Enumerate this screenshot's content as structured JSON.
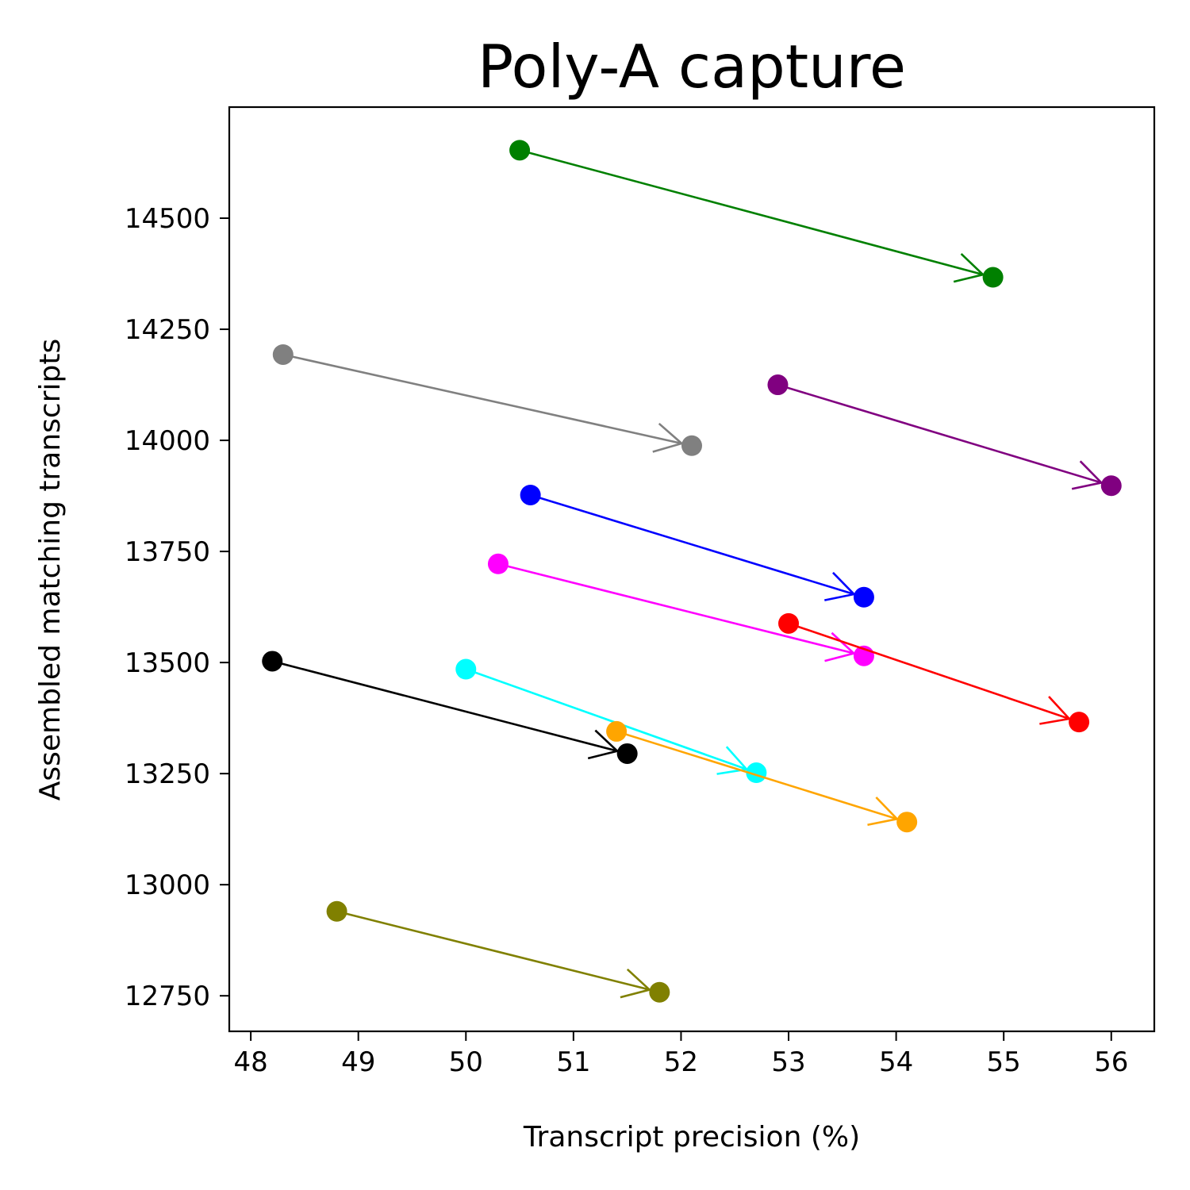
{
  "chart_data": {
    "type": "scatter",
    "title": "Poly-A capture",
    "xlabel": "Transcript precision (%)",
    "ylabel": "Assembled matching transcripts",
    "xlim": [
      47.8,
      56.4
    ],
    "ylim": [
      12670,
      14750
    ],
    "xticks": [
      "48",
      "49",
      "50",
      "51",
      "52",
      "53",
      "54",
      "55",
      "56"
    ],
    "yticks": [
      "12750",
      "13000",
      "13250",
      "13500",
      "13750",
      "14000",
      "14250",
      "14500"
    ],
    "grid": false,
    "series": [
      {
        "color": "#008000",
        "from": {
          "x": 50.5,
          "y": 14653
        },
        "to": {
          "x": 54.9,
          "y": 14367
        }
      },
      {
        "color": "#808080",
        "from": {
          "x": 48.3,
          "y": 14193
        },
        "to": {
          "x": 52.1,
          "y": 13988
        }
      },
      {
        "color": "#800080",
        "from": {
          "x": 52.9,
          "y": 14125
        },
        "to": {
          "x": 56.0,
          "y": 13898
        }
      },
      {
        "color": "#0000ff",
        "from": {
          "x": 50.6,
          "y": 13877
        },
        "to": {
          "x": 53.7,
          "y": 13647
        }
      },
      {
        "color": "#ff00ff",
        "from": {
          "x": 50.3,
          "y": 13722
        },
        "to": {
          "x": 53.7,
          "y": 13515
        }
      },
      {
        "color": "#ff0000",
        "from": {
          "x": 53.0,
          "y": 13588
        },
        "to": {
          "x": 55.7,
          "y": 13366
        }
      },
      {
        "color": "#000000",
        "from": {
          "x": 48.2,
          "y": 13503
        },
        "to": {
          "x": 51.5,
          "y": 13295
        }
      },
      {
        "color": "#00ffff",
        "from": {
          "x": 50.0,
          "y": 13485
        },
        "to": {
          "x": 52.7,
          "y": 13252
        }
      },
      {
        "color": "#ffa500",
        "from": {
          "x": 51.4,
          "y": 13345
        },
        "to": {
          "x": 54.1,
          "y": 13141
        }
      },
      {
        "color": "#808000",
        "from": {
          "x": 48.8,
          "y": 12940
        },
        "to": {
          "x": 51.8,
          "y": 12758
        }
      }
    ]
  }
}
